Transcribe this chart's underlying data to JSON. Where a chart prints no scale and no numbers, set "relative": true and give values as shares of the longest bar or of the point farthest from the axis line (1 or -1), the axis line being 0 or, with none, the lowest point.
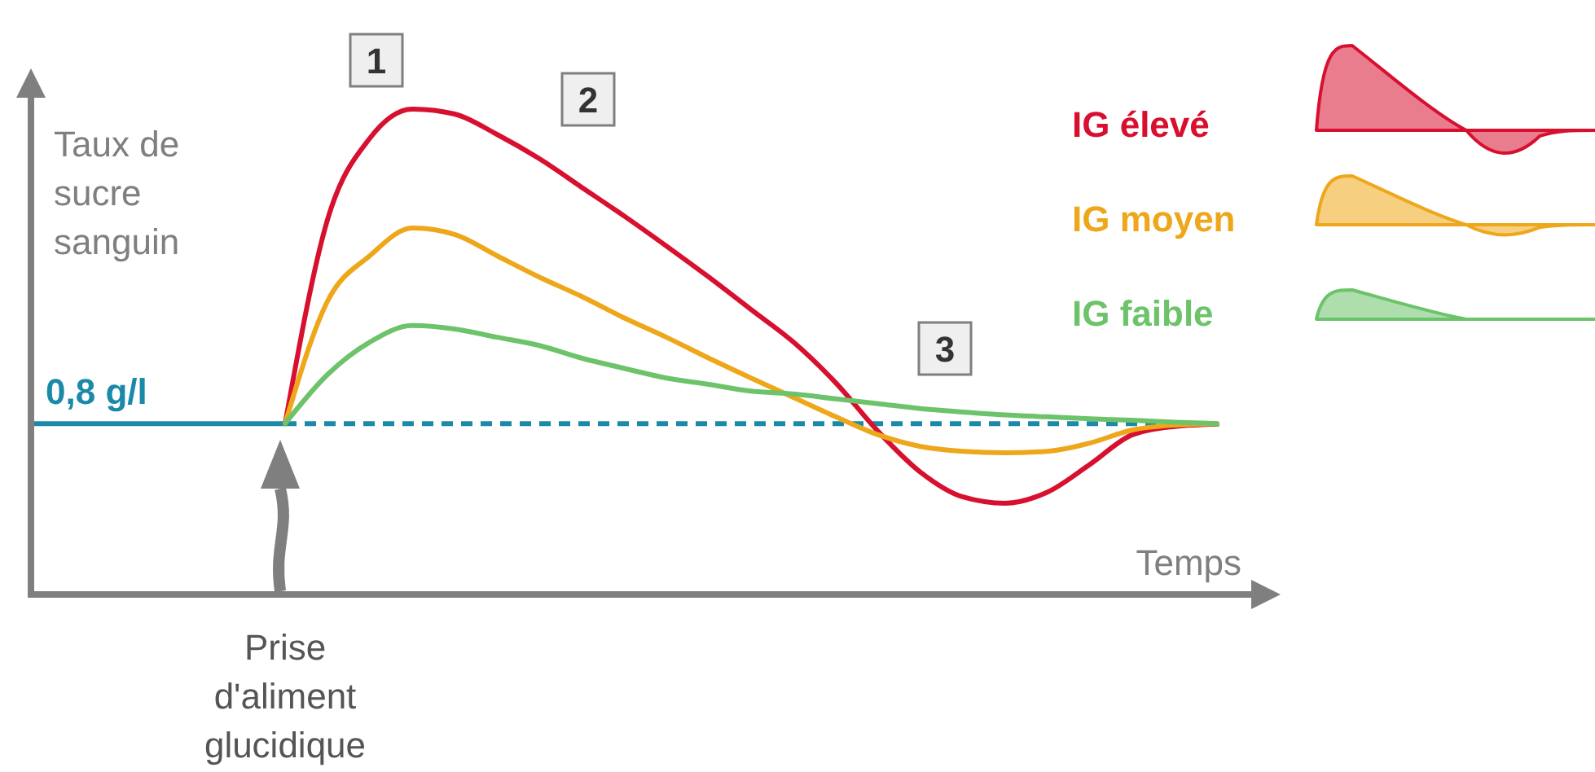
{
  "chart_data": {
    "type": "line",
    "relative": true,
    "ylabel": "Taux de sucre sanguin",
    "xlabel": "Temps",
    "categories": [
      null,
      null,
      null,
      null,
      null,
      null,
      null,
      null,
      null,
      null,
      null,
      null,
      null,
      null,
      null,
      null,
      null,
      null,
      null,
      null,
      null,
      null,
      null,
      null,
      null,
      null,
      null,
      null,
      null
    ],
    "series": [
      {
        "name": "IG élevé",
        "color": "#d7102f",
        "values": [
          null,
          null,
          null,
          null,
          null,
          null,
          0.352,
          0.772,
          0.94,
          1.0,
          0.99,
          0.948,
          0.898,
          0.839,
          0.78,
          0.718,
          0.654,
          0.587,
          0.52,
          0.436,
          0.336,
          0.252,
          0.201,
          0.188,
          0.211,
          0.268,
          0.329,
          0.346,
          0.351
        ]
      },
      {
        "name": "IG moyen",
        "color": "#eea71a",
        "values": [
          null,
          null,
          null,
          null,
          null,
          null,
          0.352,
          0.604,
          0.698,
          0.755,
          0.742,
          0.698,
          0.654,
          0.614,
          0.57,
          0.53,
          0.487,
          0.446,
          0.406,
          0.366,
          0.329,
          0.305,
          0.295,
          0.292,
          0.295,
          0.312,
          0.339,
          0.349,
          0.352
        ]
      },
      {
        "name": "IG faible",
        "color": "#6cc36a",
        "values": [
          null,
          null,
          null,
          null,
          null,
          null,
          0.352,
          0.453,
          0.52,
          0.554,
          0.547,
          0.53,
          0.513,
          0.487,
          0.466,
          0.446,
          0.433,
          0.419,
          0.413,
          0.403,
          0.393,
          0.383,
          0.376,
          0.37,
          0.366,
          0.362,
          0.359,
          0.355,
          0.352
        ]
      }
    ],
    "ref_lines": [
      {
        "axis": "y",
        "value": 0.352,
        "label": "0,8 g/l",
        "color": "#1a8aa8"
      }
    ],
    "annotations": [
      "1",
      "2",
      "3",
      "Prise\nd'aliment\nglucidique"
    ],
    "legend": "right",
    "grid": false,
    "marker": "none",
    "line_style": "solid"
  }
}
